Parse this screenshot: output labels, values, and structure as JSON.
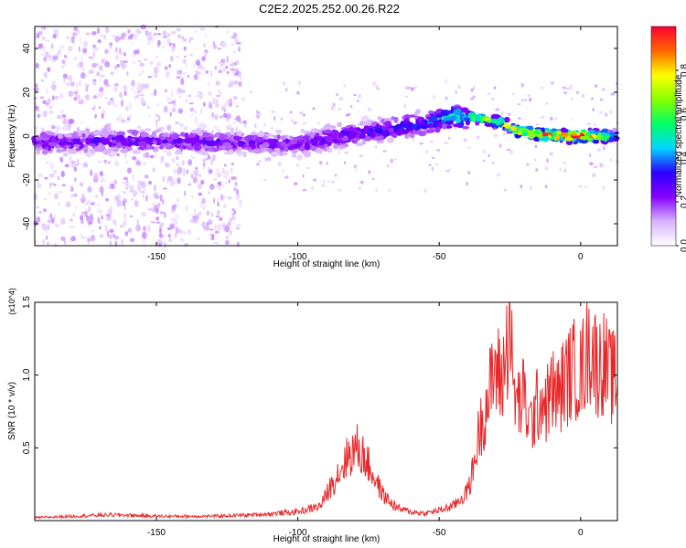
{
  "figure_title": "C2E2.2025.252.00.26.R22",
  "colors": {
    "snr_line": "#e8282a",
    "axis": "#000000",
    "background": "#ffffff"
  },
  "colorbar": {
    "label": "Normalized spectral amplitude",
    "ticks": [
      "0.0",
      "0.2",
      "0.4",
      "0.6",
      "0.8"
    ],
    "tick_values": [
      0.0,
      0.2,
      0.4,
      0.6,
      0.8
    ],
    "range": [
      0,
      1
    ],
    "colormap": [
      "#ffffff",
      "#d9b3ff",
      "#8800ff",
      "#2a00ff",
      "#00d5ff",
      "#00ff66",
      "#88ff00",
      "#ffff00",
      "#ff6600",
      "#ff0033"
    ]
  },
  "chart_data": [
    {
      "type": "heatmap",
      "title": "",
      "xlabel": "Height of straight line (km)",
      "ylabel": "Frequency (Hz)",
      "xlim": [
        -193,
        13
      ],
      "ylim": [
        -50,
        50
      ],
      "x_ticks": [
        -150,
        -100,
        -50,
        0
      ],
      "x_tick_labels": [
        "-150",
        "-100",
        "-50",
        "0"
      ],
      "y_ticks": [
        -40,
        -20,
        0,
        20,
        40
      ],
      "y_tick_labels": [
        "-40",
        "-20",
        "0",
        "20",
        "40"
      ],
      "ridge": {
        "x": [
          -193,
          -150,
          -120,
          -100,
          -85,
          -70,
          -55,
          -45,
          -35,
          -28,
          -22,
          -15,
          -5,
          5,
          13
        ],
        "frequency": [
          -3,
          -2,
          -3,
          -4,
          0,
          3,
          6,
          9,
          8,
          6,
          2,
          1,
          0,
          0,
          0
        ],
        "peak_amplitude": [
          0.3,
          0.3,
          0.28,
          0.28,
          0.32,
          0.35,
          0.4,
          0.55,
          0.75,
          0.7,
          0.85,
          0.95,
          1.0,
          0.95,
          0.5
        ]
      },
      "background_scatter_region": {
        "x_range": [
          -193,
          -120
        ],
        "frequency_range": [
          -50,
          50
        ],
        "amplitude": 0.1
      }
    },
    {
      "type": "line",
      "title": "",
      "xlabel": "Height of straight line (km)",
      "ylabel": "SNR (10 * v/v)",
      "y_multiplier": "(x10^4)",
      "xlim": [
        -193,
        13
      ],
      "ylim": [
        0,
        1.5
      ],
      "x_ticks": [
        -150,
        -100,
        -50,
        0
      ],
      "x_tick_labels": [
        "-150",
        "-100",
        "-50",
        "0"
      ],
      "y_ticks": [
        0.5,
        1.0,
        1.5
      ],
      "y_tick_labels": [
        "0.5",
        "1.0",
        "1.5"
      ],
      "series": [
        {
          "x": [
            -193,
            -180,
            -165,
            -150,
            -130,
            -115,
            -100,
            -92,
            -88,
            -85,
            -82,
            -79,
            -76,
            -73,
            -70,
            -67,
            -64,
            -60,
            -55,
            -50,
            -45,
            -40,
            -38,
            -36,
            -34,
            -32,
            -30,
            -28,
            -26,
            -25,
            -24,
            -22,
            -20,
            -18,
            -16,
            -14,
            -12,
            -10,
            -8,
            -6,
            -4,
            -2,
            0,
            2,
            4,
            6,
            8,
            10,
            13
          ],
          "y": [
            0.02,
            0.03,
            0.04,
            0.03,
            0.03,
            0.04,
            0.06,
            0.1,
            0.25,
            0.35,
            0.45,
            0.5,
            0.42,
            0.3,
            0.18,
            0.12,
            0.08,
            0.06,
            0.05,
            0.07,
            0.1,
            0.2,
            0.35,
            0.6,
            0.75,
            0.9,
            1.05,
            0.95,
            1.2,
            1.55,
            0.9,
            0.8,
            0.85,
            0.65,
            0.75,
            0.85,
            0.8,
            0.9,
            0.85,
            0.95,
            1.0,
            1.05,
            1.0,
            1.15,
            1.2,
            1.05,
            1.1,
            1.0,
            0.95
          ]
        }
      ]
    }
  ]
}
